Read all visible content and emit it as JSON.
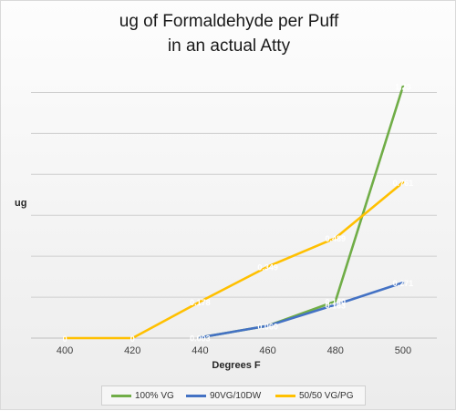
{
  "chart_data": {
    "type": "line",
    "title_lines": [
      "ug of Formaldehyde per Puff",
      "in an actual Atty"
    ],
    "xlabel": "Degrees F",
    "ylabel": "ug",
    "x": [
      400,
      420,
      440,
      460,
      480,
      500
    ],
    "ylim": [
      0,
      1.3
    ],
    "y_gridline_step": 0.2,
    "grid": "horizontal",
    "legend_position": "bottom",
    "series": [
      {
        "name": "100% VG",
        "color": "#70ad47",
        "x": [
          440,
          460,
          480,
          500
        ],
        "values": [
          0.003,
          0.06,
          0.18,
          1.23
        ],
        "labels": [
          "",
          "",
          "0.180",
          "1.23"
        ]
      },
      {
        "name": "90VG/10DW",
        "color": "#4472c4",
        "x": [
          440,
          460,
          480,
          500
        ],
        "values": [
          0.003,
          0.06,
          0.163,
          0.271
        ],
        "labels": [
          "0.003",
          "0.060",
          "0.163",
          "0.271"
        ]
      },
      {
        "name": "50/50 VG/PG",
        "color": "#ffc000",
        "x": [
          400,
          420,
          440,
          460,
          480,
          500
        ],
        "values": [
          0,
          0,
          0.178,
          0.349,
          0.489,
          0.761
        ],
        "labels": [
          "0",
          "0",
          "0.178",
          "0.349",
          "0.489",
          "0.761"
        ]
      }
    ]
  }
}
